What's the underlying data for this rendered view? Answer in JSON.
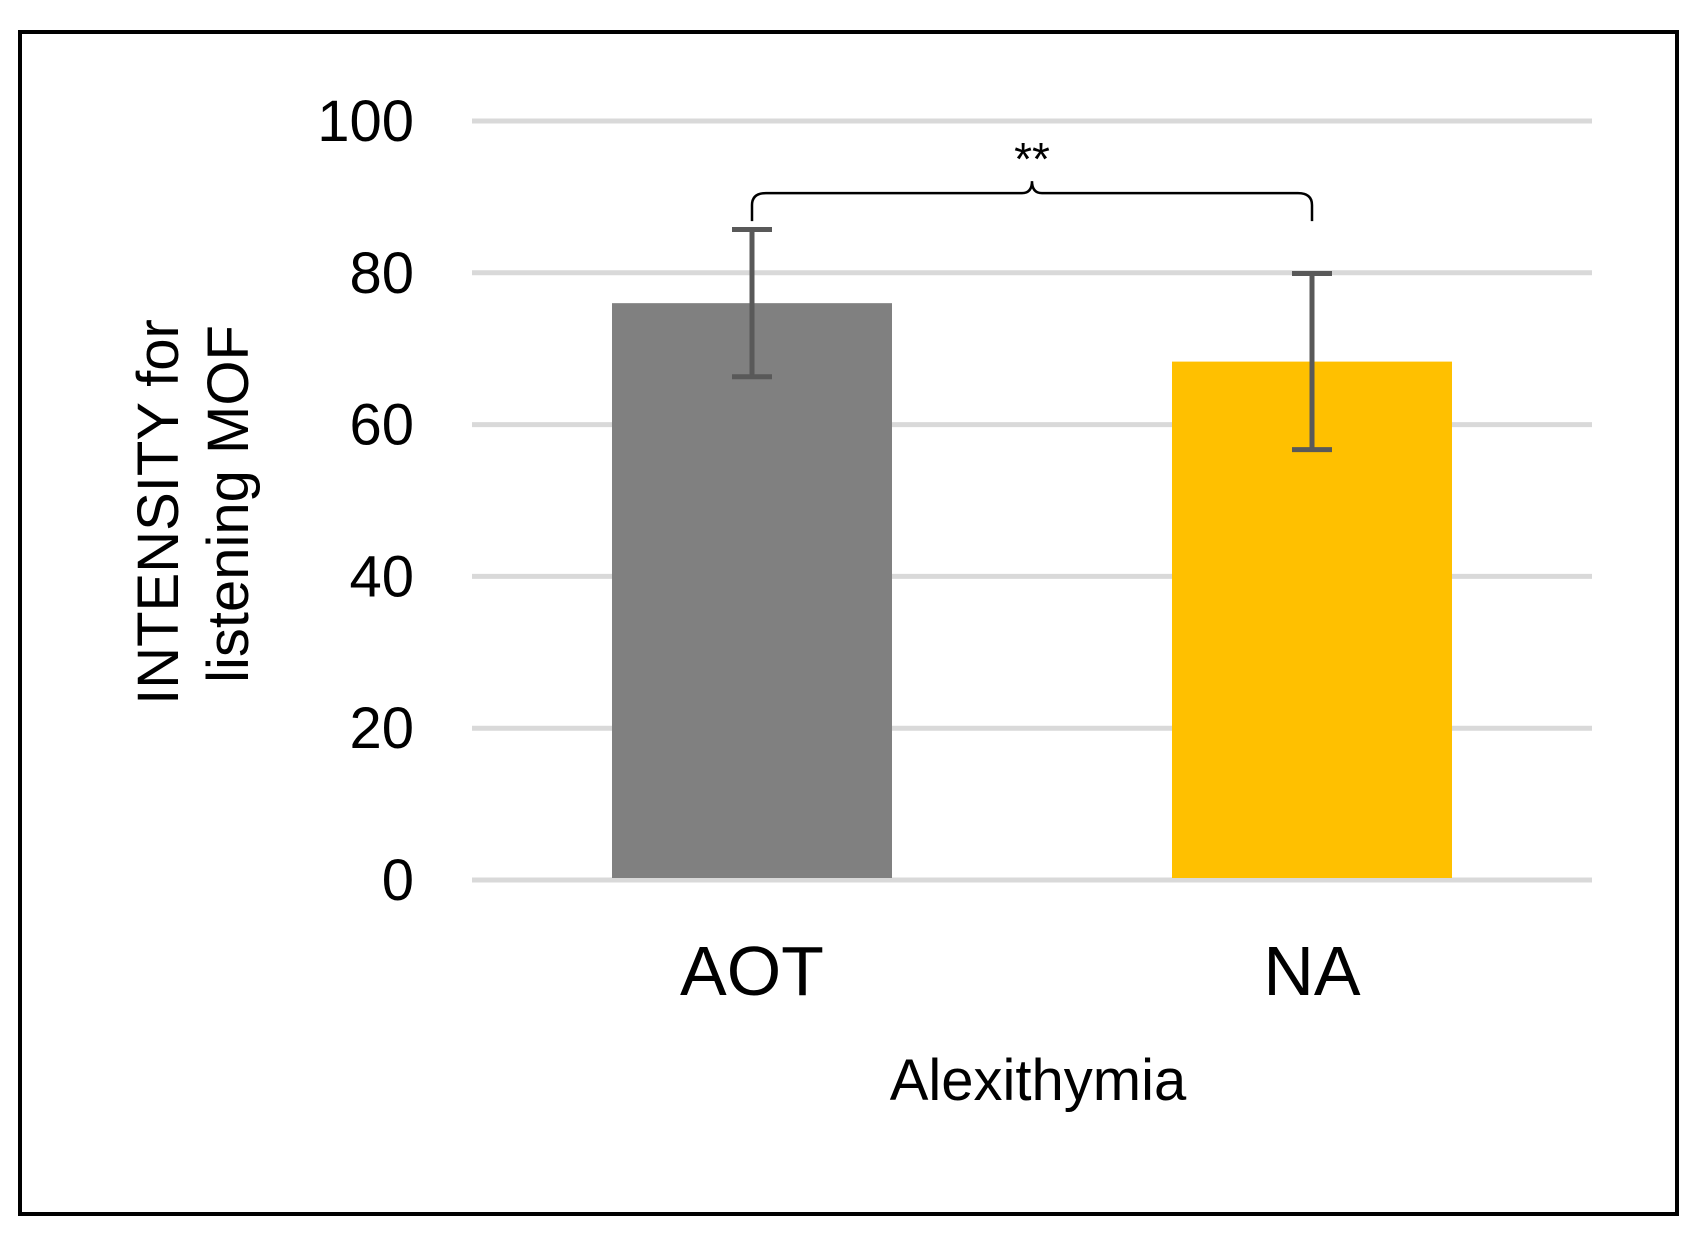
{
  "chart_data": {
    "type": "bar",
    "title": "",
    "xlabel": "Alexithymia",
    "ylabel_lines": [
      "INTENSITY for",
      "listening MOF"
    ],
    "categories": [
      "AOT",
      "NA"
    ],
    "values": [
      76,
      68.3
    ],
    "errors": [
      9.7,
      11.6
    ],
    "colors": [
      "#808080",
      "#FFC000"
    ],
    "ylim": [
      0,
      100
    ],
    "yticks": [
      0,
      20,
      40,
      60,
      80,
      100
    ],
    "grid": true,
    "significance": {
      "label": "**",
      "between": [
        0,
        1
      ],
      "level": 90.5
    }
  }
}
